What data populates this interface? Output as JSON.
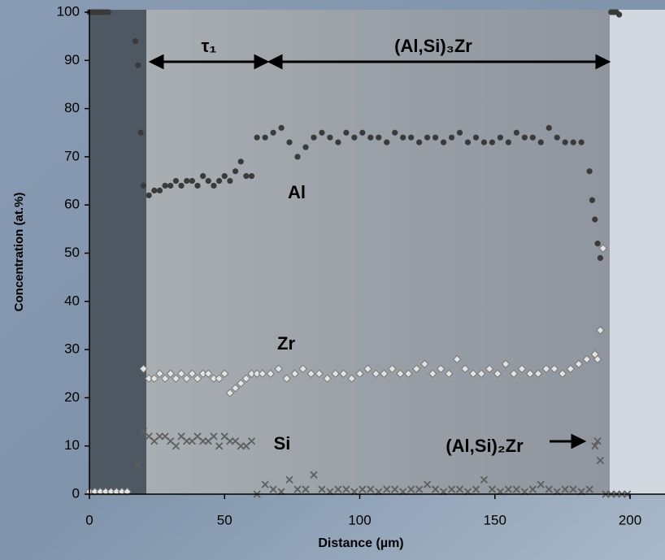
{
  "chart_data": {
    "type": "scatter",
    "xlabel": "Distance (µm)",
    "ylabel": "Concentration (at.%)",
    "xlim": [
      0,
      200
    ],
    "xticks": [
      0,
      50,
      100,
      150,
      200
    ],
    "ylim": [
      0,
      100
    ],
    "yticks": [
      0,
      10,
      20,
      30,
      40,
      50,
      60,
      70,
      80,
      90,
      100
    ],
    "annotations": [
      "τ₁",
      "(Al,Si)₃Zr",
      "(Al,Si)₂Zr"
    ],
    "series": [
      {
        "name": "Al",
        "color": "#3a3a3a",
        "marker": "circle",
        "x": [
          0,
          1,
          2,
          3,
          4,
          5,
          6,
          7,
          17,
          18,
          19,
          20,
          22,
          24,
          26,
          28,
          30,
          32,
          34,
          36,
          38,
          40,
          42,
          44,
          46,
          48,
          50,
          52,
          54,
          56,
          58,
          60,
          62,
          65,
          68,
          71,
          74,
          77,
          80,
          83,
          86,
          89,
          92,
          95,
          98,
          101,
          104,
          107,
          110,
          113,
          116,
          119,
          122,
          125,
          128,
          131,
          134,
          137,
          140,
          143,
          146,
          149,
          152,
          155,
          158,
          161,
          164,
          167,
          170,
          173,
          176,
          179,
          182,
          185,
          186,
          187,
          188,
          189,
          193,
          194,
          195,
          196
        ],
        "values": [
          100,
          100,
          100,
          100,
          100,
          100,
          100,
          100,
          94,
          89,
          75,
          64,
          62,
          63,
          63,
          64,
          64,
          65,
          64,
          65,
          65,
          64,
          66,
          65,
          64,
          65,
          66,
          65,
          67,
          69,
          66,
          66,
          74,
          74,
          75,
          76,
          73,
          70,
          72,
          74,
          75,
          74,
          73,
          75,
          74,
          75,
          74,
          74,
          73,
          75,
          74,
          74,
          73,
          74,
          74,
          73,
          74,
          75,
          73,
          74,
          73,
          73,
          74,
          73,
          75,
          74,
          74,
          73,
          76,
          74,
          73,
          73,
          73,
          67,
          61,
          57,
          52,
          49,
          100,
          100,
          100,
          99.5
        ]
      },
      {
        "name": "Zr",
        "color": "#e4e4e4",
        "marker": "diamond",
        "x": [
          0,
          2,
          4,
          6,
          8,
          10,
          12,
          14,
          20,
          22,
          24,
          26,
          28,
          30,
          32,
          34,
          36,
          38,
          40,
          42,
          44,
          46,
          48,
          50,
          52,
          54,
          56,
          58,
          60,
          62,
          64,
          67,
          70,
          73,
          76,
          79,
          82,
          85,
          88,
          91,
          94,
          97,
          100,
          103,
          106,
          109,
          112,
          115,
          118,
          121,
          124,
          127,
          130,
          133,
          136,
          139,
          142,
          145,
          148,
          151,
          154,
          157,
          160,
          163,
          166,
          169,
          172,
          175,
          178,
          181,
          184,
          187,
          188,
          189,
          190
        ],
        "values": [
          0.5,
          0.5,
          0.5,
          0.5,
          0.5,
          0.5,
          0.5,
          0.5,
          26,
          24,
          24,
          25,
          24,
          25,
          24,
          25,
          24,
          25,
          24,
          25,
          25,
          24,
          24,
          25,
          21,
          22,
          23,
          24,
          25,
          25,
          25,
          25,
          26,
          24,
          25,
          26,
          25,
          25,
          24,
          25,
          25,
          24,
          25,
          26,
          25,
          25,
          26,
          25,
          25,
          26,
          27,
          25,
          26,
          25,
          28,
          26,
          25,
          25,
          26,
          25,
          27,
          25,
          26,
          25,
          25,
          26,
          26,
          25,
          26,
          27,
          28,
          29,
          28,
          34,
          51
        ]
      },
      {
        "name": "Si",
        "color": "#5e5e5e",
        "marker": "cross",
        "x": [
          18,
          20,
          22,
          24,
          26,
          28,
          30,
          32,
          34,
          36,
          38,
          40,
          42,
          44,
          46,
          48,
          50,
          52,
          54,
          56,
          58,
          60,
          62,
          65,
          68,
          71,
          74,
          77,
          80,
          83,
          86,
          89,
          92,
          95,
          98,
          101,
          104,
          107,
          110,
          113,
          116,
          119,
          122,
          125,
          128,
          131,
          134,
          137,
          140,
          143,
          146,
          149,
          152,
          155,
          158,
          161,
          164,
          167,
          170,
          173,
          176,
          179,
          182,
          185,
          187,
          188,
          189,
          191,
          193,
          195,
          197,
          199
        ],
        "values": [
          6,
          13,
          12,
          11,
          12,
          12,
          11,
          10,
          12,
          11,
          11,
          12,
          11,
          11,
          12,
          10,
          12,
          11,
          11,
          10,
          10,
          11,
          0,
          2,
          1,
          0.5,
          3,
          1,
          1,
          4,
          1,
          0.5,
          1,
          1,
          0.5,
          1,
          1,
          0.5,
          1,
          1,
          0.5,
          1,
          1,
          2,
          1,
          0.5,
          1,
          1,
          0.5,
          1,
          3,
          1,
          0.5,
          1,
          1,
          0.5,
          1,
          2,
          1,
          0.5,
          1,
          1,
          0.5,
          1,
          10,
          11,
          7,
          0,
          0,
          0,
          0,
          0
        ]
      }
    ]
  }
}
